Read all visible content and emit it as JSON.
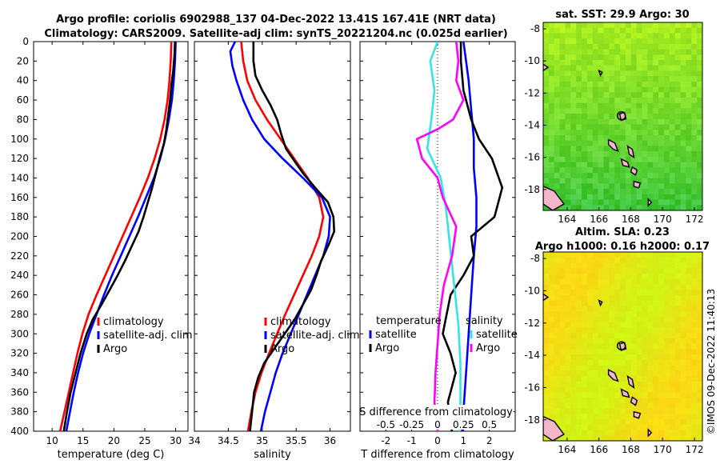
{
  "header": {
    "title_line1": "Argo profile: coriolis 6902988_137 04-Dec-2022 13.41S 167.41E (NRT data)",
    "title_line2": "Climatology: CARS2009. Satellite-adj clim: synTS_20221204.nc (0.025d earlier)"
  },
  "colors": {
    "climatology": "#ff0000",
    "satellite": "#0000ff",
    "argo": "#000000",
    "sat_salinity": "#33e5e5",
    "argo_salinity_diff": "#ff00ff"
  },
  "watermark": "©IMOS 09-Dec-2022 11:40:13",
  "chart_data": [
    {
      "id": "temperature",
      "type": "line",
      "xlabel": "temperature (deg C)",
      "ylabel": "depth",
      "xlim": [
        7,
        32
      ],
      "ylim": [
        0,
        400
      ],
      "xticks": [
        10,
        15,
        20,
        25,
        30
      ],
      "yticks": [
        0,
        20,
        40,
        60,
        80,
        100,
        120,
        140,
        160,
        180,
        200,
        220,
        240,
        260,
        280,
        300,
        320,
        340,
        360,
        380,
        400
      ],
      "legend": [
        "climatology",
        "satellite-adj. clim",
        "Argo"
      ],
      "series": [
        {
          "name": "climatology",
          "color": "#ff0000",
          "points": [
            [
              29.3,
              0
            ],
            [
              29.2,
              20
            ],
            [
              29.0,
              40
            ],
            [
              28.7,
              60
            ],
            [
              28.2,
              80
            ],
            [
              27.5,
              100
            ],
            [
              26.6,
              120
            ],
            [
              25.5,
              140
            ],
            [
              24.2,
              160
            ],
            [
              22.8,
              180
            ],
            [
              21.4,
              200
            ],
            [
              20.0,
              220
            ],
            [
              18.6,
              240
            ],
            [
              17.2,
              260
            ],
            [
              15.9,
              280
            ],
            [
              14.9,
              300
            ],
            [
              14.1,
              320
            ],
            [
              13.4,
              340
            ],
            [
              12.7,
              360
            ],
            [
              12.0,
              380
            ],
            [
              11.3,
              400
            ]
          ]
        },
        {
          "name": "satellite-adj. clim",
          "color": "#0000ff",
          "points": [
            [
              30.0,
              0
            ],
            [
              29.9,
              20
            ],
            [
              29.7,
              40
            ],
            [
              29.4,
              60
            ],
            [
              28.9,
              80
            ],
            [
              28.3,
              100
            ],
            [
              27.5,
              120
            ],
            [
              26.5,
              140
            ],
            [
              25.2,
              160
            ],
            [
              23.9,
              180
            ],
            [
              22.5,
              200
            ],
            [
              21.1,
              220
            ],
            [
              19.7,
              240
            ],
            [
              18.4,
              260
            ],
            [
              17.2,
              280
            ],
            [
              16.0,
              300
            ],
            [
              15.0,
              320
            ],
            [
              14.2,
              340
            ],
            [
              13.5,
              360
            ],
            [
              12.9,
              380
            ],
            [
              12.3,
              400
            ]
          ]
        },
        {
          "name": "Argo",
          "color": "#000000",
          "points": [
            [
              29.9,
              0
            ],
            [
              29.8,
              15
            ],
            [
              29.6,
              30
            ],
            [
              29.3,
              45
            ],
            [
              29.1,
              60
            ],
            [
              28.8,
              75
            ],
            [
              28.5,
              90
            ],
            [
              28.1,
              105
            ],
            [
              27.4,
              120
            ],
            [
              26.8,
              135
            ],
            [
              26.2,
              150
            ],
            [
              25.5,
              165
            ],
            [
              24.8,
              180
            ],
            [
              24.0,
              195
            ],
            [
              22.9,
              210
            ],
            [
              21.8,
              225
            ],
            [
              20.6,
              240
            ],
            [
              19.3,
              255
            ],
            [
              18.0,
              270
            ],
            [
              16.6,
              285
            ],
            [
              15.6,
              300
            ],
            [
              14.6,
              320
            ],
            [
              13.8,
              340
            ],
            [
              13.0,
              360
            ],
            [
              12.4,
              380
            ],
            [
              11.9,
              400
            ]
          ]
        }
      ]
    },
    {
      "id": "salinity",
      "type": "line",
      "xlabel": "salinity",
      "ylabel": "depth",
      "xlim": [
        34,
        36.3
      ],
      "ylim": [
        0,
        400
      ],
      "xticks": [
        34,
        34.5,
        35,
        35.5,
        36
      ],
      "xticklabels": [
        "34",
        "34.5",
        "35",
        "35.5",
        "36"
      ],
      "yticks": [
        0,
        20,
        40,
        60,
        80,
        100,
        120,
        140,
        160,
        180,
        200,
        220,
        240,
        260,
        280,
        300,
        320,
        340,
        360,
        380,
        400
      ],
      "legend": [
        "climatology",
        "satellite-adj. clim",
        "Argo"
      ],
      "series": [
        {
          "name": "climatology",
          "color": "#ff0000",
          "points": [
            [
              34.69,
              0
            ],
            [
              34.72,
              20
            ],
            [
              34.78,
              40
            ],
            [
              34.9,
              60
            ],
            [
              35.07,
              80
            ],
            [
              35.27,
              100
            ],
            [
              35.47,
              120
            ],
            [
              35.67,
              140
            ],
            [
              35.84,
              160
            ],
            [
              35.9,
              180
            ],
            [
              35.84,
              200
            ],
            [
              35.73,
              220
            ],
            [
              35.6,
              240
            ],
            [
              35.47,
              260
            ],
            [
              35.34,
              280
            ],
            [
              35.22,
              300
            ],
            [
              35.1,
              320
            ],
            [
              34.99,
              340
            ],
            [
              34.9,
              360
            ],
            [
              34.84,
              380
            ],
            [
              34.79,
              400
            ]
          ]
        },
        {
          "name": "satellite-adj. clim",
          "color": "#0000ff",
          "points": [
            [
              34.6,
              0
            ],
            [
              34.53,
              10
            ],
            [
              34.56,
              25
            ],
            [
              34.62,
              40
            ],
            [
              34.72,
              60
            ],
            [
              34.85,
              80
            ],
            [
              35.03,
              100
            ],
            [
              35.3,
              120
            ],
            [
              35.6,
              140
            ],
            [
              35.88,
              160
            ],
            [
              36.0,
              180
            ],
            [
              35.98,
              200
            ],
            [
              35.9,
              220
            ],
            [
              35.78,
              240
            ],
            [
              35.66,
              260
            ],
            [
              35.54,
              280
            ],
            [
              35.42,
              300
            ],
            [
              35.3,
              320
            ],
            [
              35.2,
              340
            ],
            [
              35.12,
              360
            ],
            [
              35.04,
              380
            ],
            [
              34.98,
              400
            ]
          ]
        },
        {
          "name": "Argo",
          "color": "#000000",
          "points": [
            [
              34.87,
              0
            ],
            [
              34.87,
              20
            ],
            [
              34.9,
              35
            ],
            [
              35.0,
              50
            ],
            [
              35.12,
              65
            ],
            [
              35.22,
              80
            ],
            [
              35.28,
              95
            ],
            [
              35.35,
              110
            ],
            [
              35.45,
              120
            ],
            [
              35.6,
              135
            ],
            [
              35.78,
              150
            ],
            [
              35.97,
              165
            ],
            [
              36.05,
              180
            ],
            [
              36.06,
              195
            ],
            [
              35.97,
              210
            ],
            [
              35.87,
              225
            ],
            [
              35.8,
              240
            ],
            [
              35.72,
              255
            ],
            [
              35.6,
              270
            ],
            [
              35.48,
              285
            ],
            [
              35.33,
              300
            ],
            [
              35.18,
              315
            ],
            [
              35.03,
              330
            ],
            [
              34.94,
              345
            ],
            [
              34.88,
              360
            ],
            [
              34.85,
              380
            ],
            [
              34.82,
              400
            ]
          ]
        }
      ]
    },
    {
      "id": "difference",
      "type": "line",
      "xlabel": "T difference from climatology",
      "ylabel": "depth",
      "xlim": [
        -3,
        3
      ],
      "ylim": [
        0,
        400
      ],
      "xticks": [
        -2,
        -1,
        0,
        1,
        2
      ],
      "xticklabels": [
        "-2",
        "-1",
        "0",
        "1",
        "2"
      ],
      "secondary_xlabel": "S difference from climatology",
      "secondary_xticklabels": [
        "-0.5",
        "-0.25",
        "0",
        "0.25",
        "0.5"
      ],
      "secondary_xlim": [
        -0.75,
        0.75
      ],
      "yticks": [
        0,
        20,
        40,
        60,
        80,
        100,
        120,
        140,
        160,
        180,
        200,
        220,
        240,
        260,
        280,
        300,
        320,
        340,
        360,
        380,
        400
      ],
      "legend_left_title": "temperature",
      "legend_right_title": "salinity",
      "legend_left": [
        "satellite",
        "Argo"
      ],
      "legend_right": [
        "satellite",
        "Argo"
      ],
      "series": [
        {
          "name": "T satellite",
          "color": "#0000ff",
          "units": "degC",
          "points": [
            [
              1.0,
              0
            ],
            [
              1.1,
              20
            ],
            [
              1.2,
              40
            ],
            [
              1.3,
              70
            ],
            [
              1.4,
              100
            ],
            [
              1.4,
              130
            ],
            [
              1.5,
              160
            ],
            [
              1.5,
              190
            ],
            [
              1.4,
              220
            ],
            [
              1.3,
              260
            ],
            [
              1.2,
              300
            ],
            [
              1.1,
              340
            ],
            [
              1.0,
              380
            ],
            [
              0.95,
              400
            ]
          ]
        },
        {
          "name": "T Argo",
          "color": "#000000",
          "units": "degC",
          "points": [
            [
              0.9,
              0
            ],
            [
              0.9,
              20
            ],
            [
              1.0,
              50
            ],
            [
              1.3,
              80
            ],
            [
              1.6,
              100
            ],
            [
              2.1,
              120
            ],
            [
              2.5,
              150
            ],
            [
              2.2,
              180
            ],
            [
              1.3,
              200
            ],
            [
              1.4,
              220
            ],
            [
              1.0,
              240
            ],
            [
              0.5,
              260
            ],
            [
              0.35,
              280
            ],
            [
              0.2,
              300
            ],
            [
              0.5,
              320
            ],
            [
              0.7,
              340
            ],
            [
              0.4,
              370
            ],
            [
              0.55,
              400
            ]
          ]
        },
        {
          "name": "S satellite",
          "color": "#33e5e5",
          "units": "psu",
          "points": [
            [
              0.0,
              0
            ],
            [
              -0.07,
              20
            ],
            [
              -0.03,
              50
            ],
            [
              -0.06,
              80
            ],
            [
              -0.1,
              110
            ],
            [
              0.03,
              140
            ],
            [
              0.08,
              170
            ],
            [
              0.12,
              210
            ],
            [
              0.16,
              250
            ],
            [
              0.2,
              290
            ],
            [
              0.22,
              330
            ],
            [
              0.22,
              370
            ],
            [
              0.21,
              400
            ]
          ]
        },
        {
          "name": "S Argo",
          "color": "#ff00ff",
          "units": "psu",
          "points": [
            [
              0.18,
              0
            ],
            [
              0.2,
              20
            ],
            [
              0.18,
              40
            ],
            [
              0.25,
              60
            ],
            [
              0.15,
              80
            ],
            [
              0.0,
              90
            ],
            [
              -0.2,
              100
            ],
            [
              -0.15,
              120
            ],
            [
              0.0,
              140
            ],
            [
              0.05,
              160
            ],
            [
              0.18,
              190
            ],
            [
              0.14,
              220
            ],
            [
              0.06,
              250
            ],
            [
              0.02,
              280
            ],
            [
              0.0,
              310
            ],
            [
              -0.02,
              340
            ],
            [
              -0.03,
              370
            ],
            [
              0.0,
              400
            ]
          ]
        }
      ]
    },
    {
      "id": "sst_map",
      "type": "heatmap",
      "title": "sat. SST: 29.9 Argo: 30",
      "xticks": [
        164,
        166,
        168,
        170,
        172
      ],
      "yticks": [
        -8,
        -10,
        -12,
        -14,
        -16,
        -18
      ],
      "xlim": [
        162.5,
        172.5
      ],
      "ylim": [
        -19.3,
        -7.6
      ],
      "argo_position": [
        167.41,
        -13.41
      ]
    },
    {
      "id": "sla_map",
      "type": "heatmap",
      "title_line1": "Altim. SLA: 0.23",
      "title_line2": "Argo h1000: 0.16 h2000: 0.17",
      "xticks": [
        164,
        166,
        168,
        170,
        172
      ],
      "yticks": [
        -8,
        -10,
        -12,
        -14,
        -16,
        -18
      ],
      "xlim": [
        162.5,
        172.5
      ],
      "ylim": [
        -19.3,
        -7.6
      ],
      "argo_position": [
        167.41,
        -13.41
      ]
    }
  ]
}
